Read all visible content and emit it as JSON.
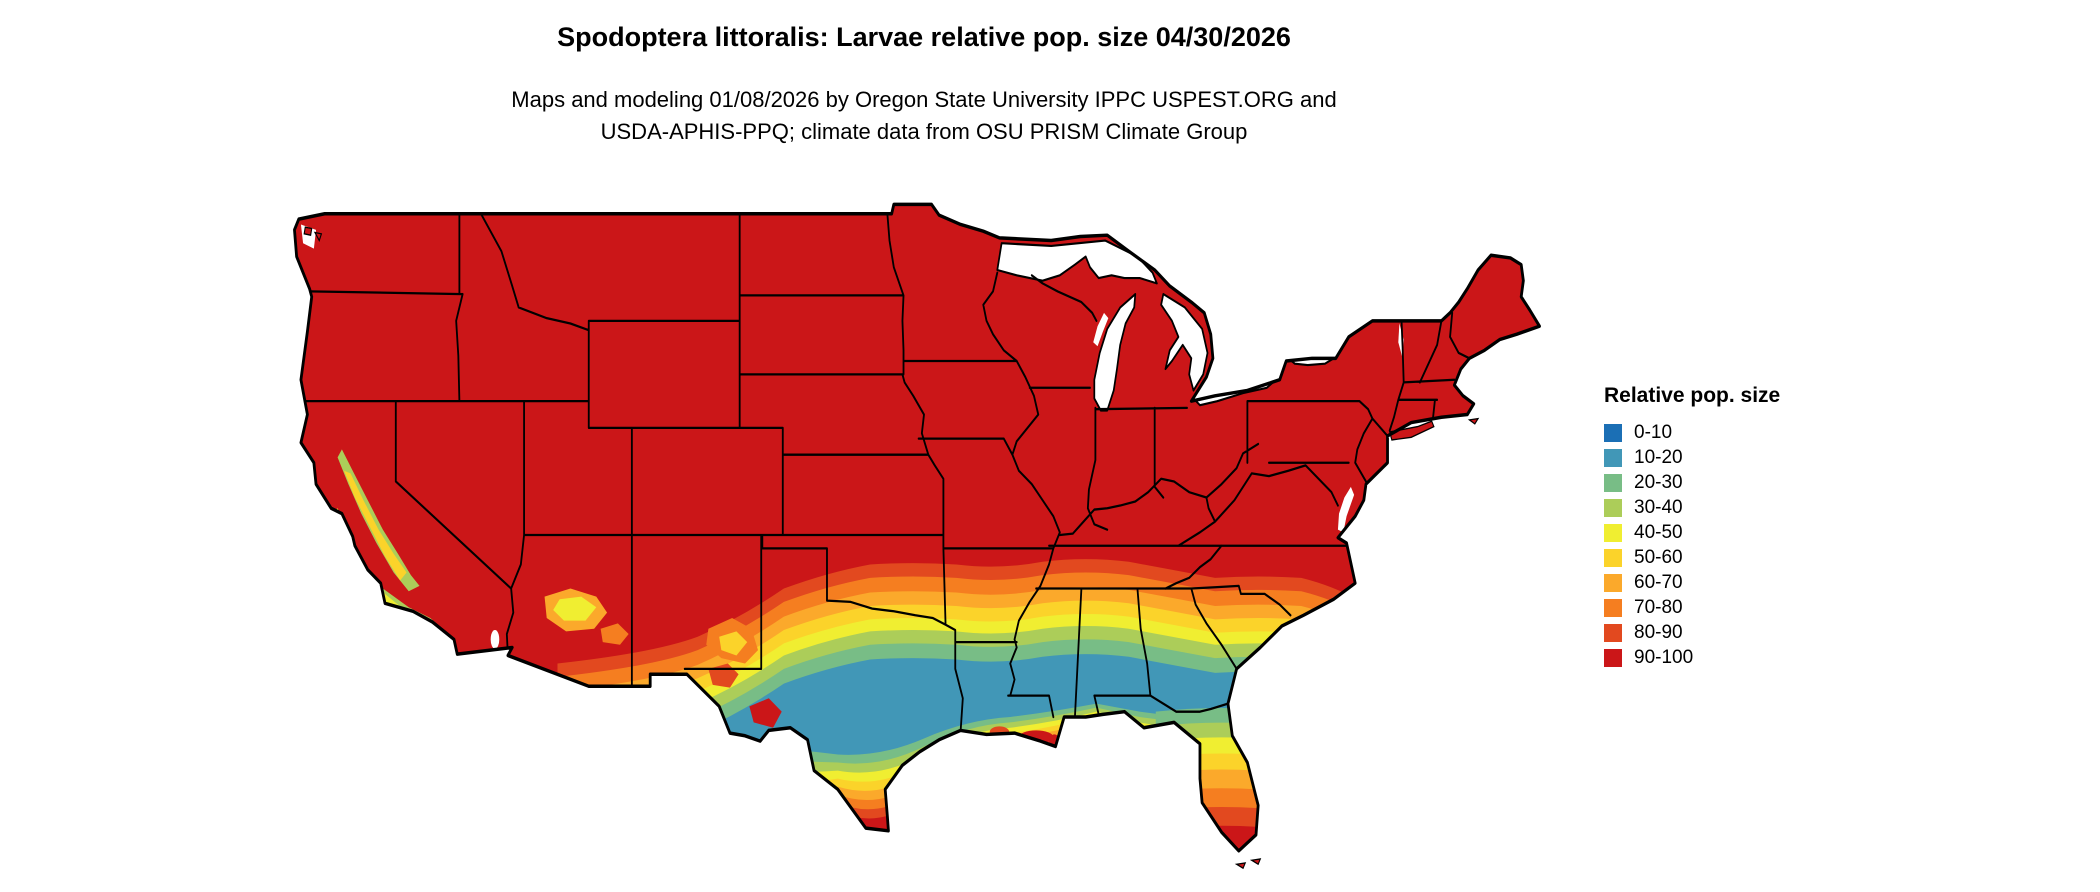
{
  "title": "Spodoptera littoralis: Larvae relative pop. size 04/30/2026",
  "subtitle": {
    "line1": "Maps and modeling 01/08/2026 by Oregon State University IPPC USPEST.ORG and",
    "line2": "USDA-APHIS-PPQ; climate data from OSU PRISM Climate Group"
  },
  "legend": {
    "title": "Relative pop. size",
    "items": [
      {
        "label": "0-10",
        "color": "#1b6fb5"
      },
      {
        "label": "10-20",
        "color": "#4197b7"
      },
      {
        "label": "20-30",
        "color": "#78bd86"
      },
      {
        "label": "30-40",
        "color": "#accd59"
      },
      {
        "label": "40-50",
        "color": "#f0ee31"
      },
      {
        "label": "50-60",
        "color": "#fbd32a"
      },
      {
        "label": "60-70",
        "color": "#fba92b"
      },
      {
        "label": "70-80",
        "color": "#f57e20"
      },
      {
        "label": "80-90",
        "color": "#e2491f"
      },
      {
        "label": "90-100",
        "color": "#cb1618"
      }
    ]
  }
}
